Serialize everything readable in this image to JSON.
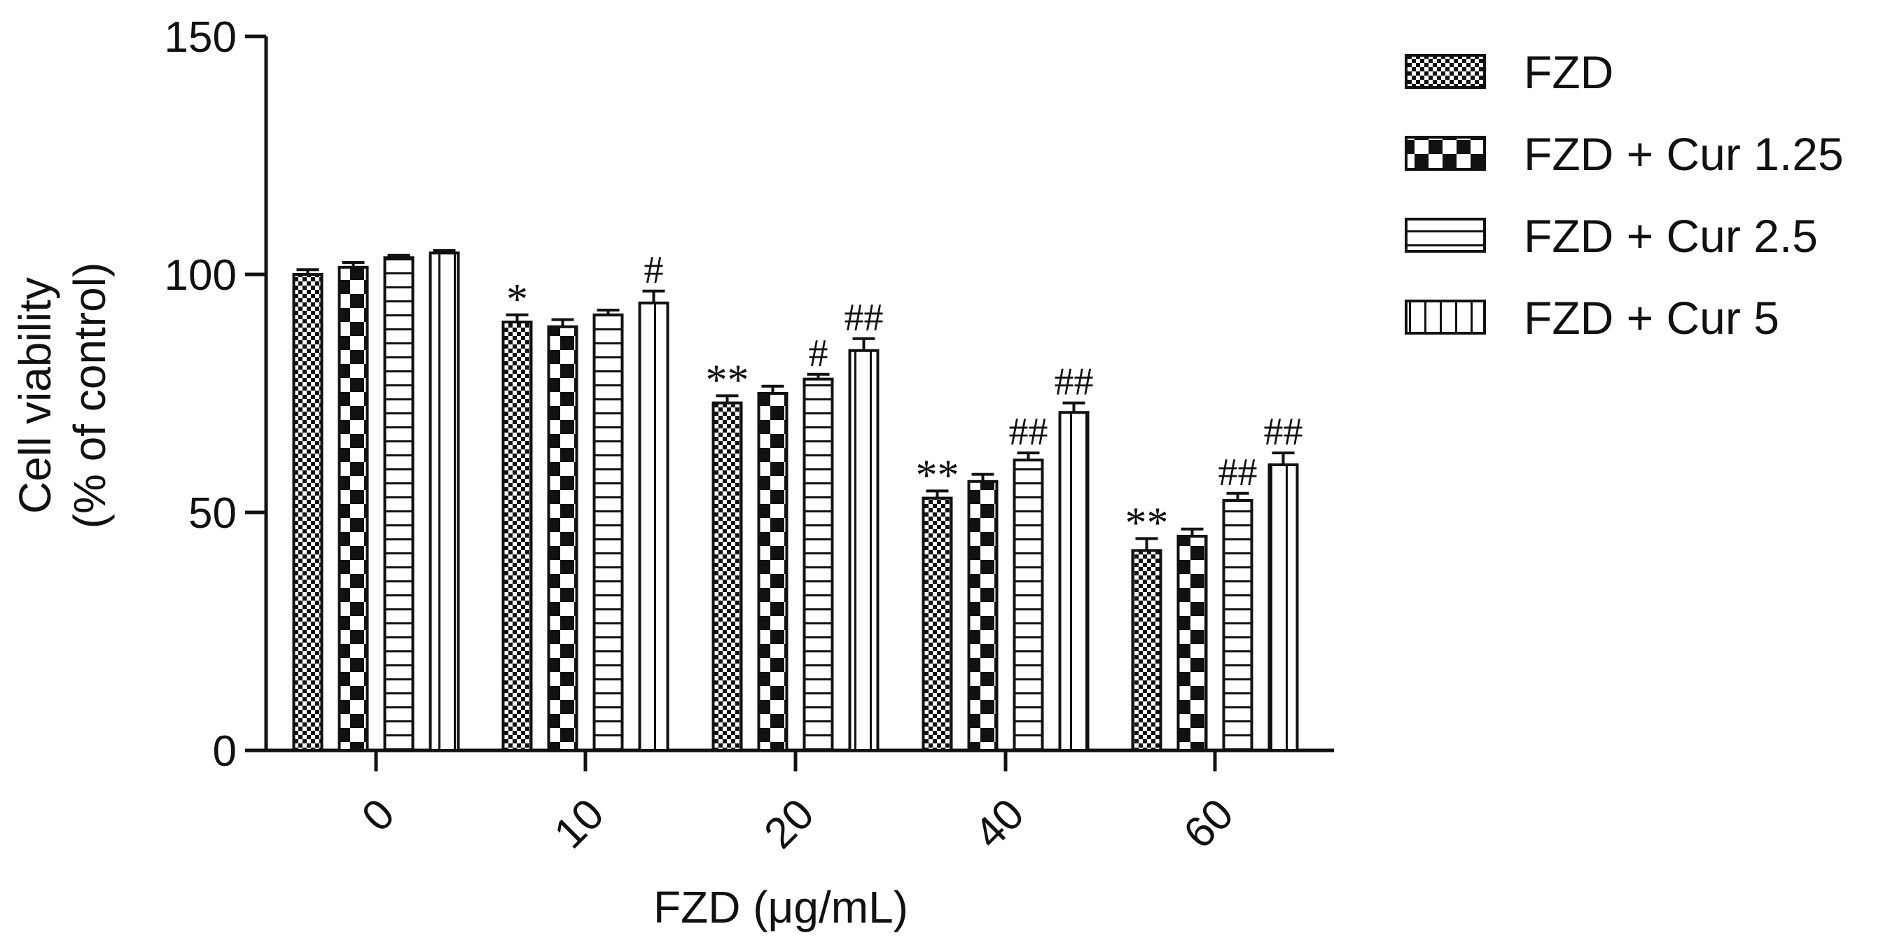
{
  "chart_data": {
    "type": "bar",
    "title": "",
    "xlabel": "FZD (μg/mL)",
    "ylabel_line1": "Cell viability",
    "ylabel_line2": "(%  of control)",
    "ylim": [
      0,
      150
    ],
    "yticks": [
      0,
      50,
      100,
      150
    ],
    "ytick_labels": [
      "0",
      "50",
      "100",
      "150"
    ],
    "categories": [
      "0",
      "10",
      "20",
      "40",
      "60"
    ],
    "series": [
      {
        "name": "FZD",
        "pattern": "fine-checker",
        "values": [
          100,
          90,
          73,
          53,
          42
        ],
        "errors": [
          1,
          1.5,
          1.5,
          1.5,
          2.5
        ],
        "annotations": [
          "",
          "*",
          "**",
          "**",
          "**"
        ]
      },
      {
        "name": "FZD + Cur 1.25",
        "pattern": "coarse-checker",
        "values": [
          101.5,
          89,
          75,
          56.5,
          45
        ],
        "errors": [
          1,
          1.5,
          1.5,
          1.5,
          1.5
        ],
        "annotations": [
          "",
          "",
          "",
          "",
          ""
        ]
      },
      {
        "name": "FZD + Cur 2.5",
        "pattern": "horizontal-lines",
        "values": [
          103.5,
          91.5,
          78,
          61,
          52.5
        ],
        "errors": [
          0.5,
          1,
          1,
          1.5,
          1.5
        ],
        "annotations": [
          "",
          "",
          "#",
          "##",
          "##"
        ]
      },
      {
        "name": "FZD + Cur 5",
        "pattern": "vertical-lines",
        "values": [
          104.5,
          94,
          84,
          71,
          60
        ],
        "errors": [
          0.5,
          2.5,
          2.5,
          2,
          2.5
        ],
        "annotations": [
          "",
          "#",
          "##",
          "##",
          "##"
        ]
      }
    ],
    "legend_position": "top-right",
    "colors": {
      "ink": "#111111",
      "background": "#ffffff"
    }
  }
}
